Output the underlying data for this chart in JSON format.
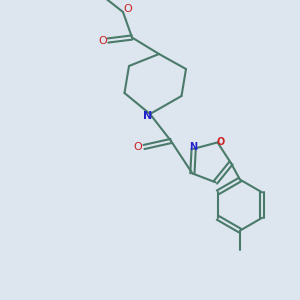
{
  "background_color": "#dde5ee",
  "bond_color": "#4a7a6a",
  "atom_colors": {
    "N": "#2222cc",
    "O": "#cc2222"
  },
  "line_width": 1.5,
  "font_size": 7
}
